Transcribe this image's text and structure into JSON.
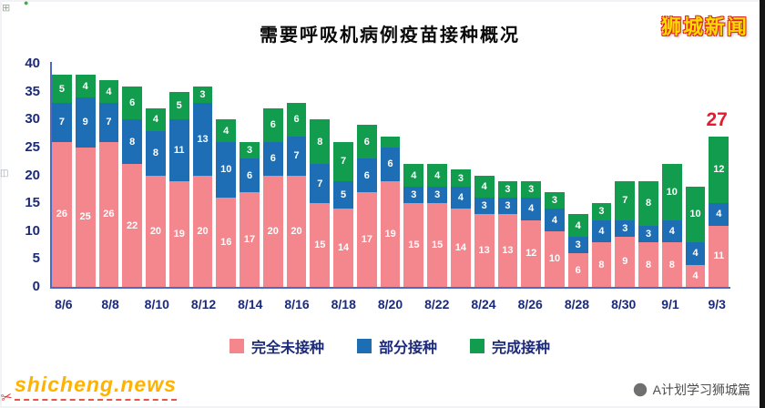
{
  "page": {
    "brand": "狮城新闻",
    "site": "shicheng.news",
    "credit": "A计划学习狮城篇"
  },
  "decorations": {
    "scissors_icon": "✂",
    "edge_icon_top": "⊞",
    "edge_icon_mid": "◫",
    "edge_icon_dot": "●"
  },
  "colors": {
    "unvaccinated_pink": "#f4868d",
    "partial_blue": "#1e6eb5",
    "full_green": "#129c4d",
    "axis_text_navy": "#1b2a7b",
    "axis_line_blue": "#4a6bc5",
    "annotation_red": "#e8192d",
    "brand_yellow": "#ffd900",
    "brand_outline_red": "#d6281e",
    "site_orange": "#ffb200"
  },
  "chart_data": {
    "type": "bar",
    "stacked": true,
    "title": "需要呼吸机病例疫苗接种概况",
    "xlabel": "",
    "ylabel": "",
    "ylim": [
      0,
      40
    ],
    "grid": false,
    "legend_position": "bottom",
    "y_ticks": [
      0,
      5,
      10,
      15,
      20,
      25,
      30,
      35,
      40
    ],
    "x_tick_labels": [
      "8/6",
      "8/8",
      "8/10",
      "8/12",
      "8/14",
      "8/16",
      "8/18",
      "8/20",
      "8/22",
      "8/24",
      "8/26",
      "8/28",
      "8/30",
      "9/1",
      "9/3"
    ],
    "dates": [
      "8/6",
      "8/7",
      "8/8",
      "8/9",
      "8/10",
      "8/11",
      "8/12",
      "8/13",
      "8/14",
      "8/15",
      "8/16",
      "8/17",
      "8/18",
      "8/19",
      "8/20",
      "8/21",
      "8/22",
      "8/23",
      "8/24",
      "8/25",
      "8/26",
      "8/27",
      "8/28",
      "8/29",
      "8/30",
      "8/31",
      "9/1",
      "9/2",
      "9/3"
    ],
    "series": [
      {
        "name": "完全未接种",
        "color": "#f4868d",
        "values": [
          26,
          25,
          26,
          22,
          20,
          19,
          20,
          16,
          17,
          20,
          20,
          15,
          14,
          17,
          19,
          15,
          15,
          14,
          13,
          13,
          12,
          10,
          6,
          8,
          9,
          8,
          8,
          4,
          11
        ]
      },
      {
        "name": "部分接种",
        "color": "#1e6eb5",
        "values": [
          7,
          9,
          7,
          8,
          8,
          11,
          13,
          10,
          6,
          6,
          7,
          7,
          5,
          6,
          6,
          3,
          3,
          4,
          3,
          3,
          4,
          4,
          3,
          4,
          3,
          3,
          4,
          4,
          4
        ]
      },
      {
        "name": "完成接种",
        "color": "#129c4d",
        "values": [
          5,
          4,
          4,
          6,
          4,
          5,
          3,
          4,
          3,
          6,
          6,
          8,
          7,
          6,
          2,
          4,
          4,
          3,
          4,
          3,
          3,
          3,
          4,
          3,
          7,
          8,
          10,
          10,
          12
        ]
      }
    ],
    "annotation": {
      "text": "27",
      "bar_index": 28
    }
  }
}
